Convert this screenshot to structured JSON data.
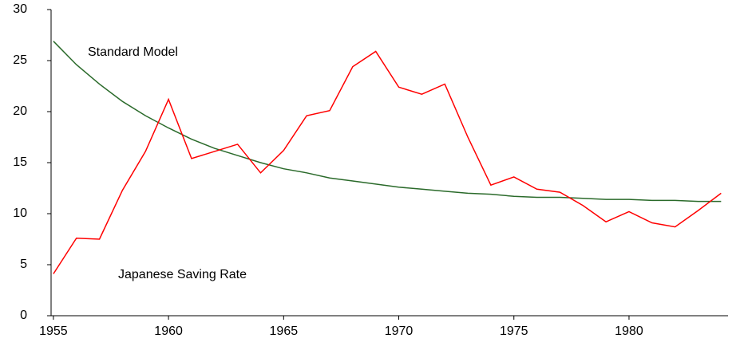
{
  "chart_data": {
    "type": "line",
    "x": [
      1955,
      1956,
      1957,
      1958,
      1959,
      1960,
      1961,
      1962,
      1963,
      1964,
      1965,
      1966,
      1967,
      1968,
      1969,
      1970,
      1971,
      1972,
      1973,
      1974,
      1975,
      1976,
      1977,
      1978,
      1979,
      1980,
      1981,
      1982,
      1983,
      1984
    ],
    "series": [
      {
        "name": "Standard Model",
        "color": "#2a6a2a",
        "values": [
          26.9,
          24.6,
          22.7,
          21.0,
          19.6,
          18.4,
          17.3,
          16.4,
          15.7,
          15.0,
          14.4,
          14.0,
          13.5,
          13.2,
          12.9,
          12.6,
          12.4,
          12.2,
          12.0,
          11.9,
          11.7,
          11.6,
          11.6,
          11.5,
          11.4,
          11.4,
          11.3,
          11.3,
          11.2,
          11.2
        ]
      },
      {
        "name": "Japanese Saving Rate",
        "color": "#ff0000",
        "values": [
          4.1,
          7.6,
          7.5,
          12.3,
          16.1,
          21.2,
          15.4,
          16.1,
          16.8,
          14.0,
          16.2,
          19.6,
          20.1,
          24.4,
          25.9,
          22.4,
          21.7,
          22.7,
          17.5,
          12.8,
          13.6,
          12.4,
          12.1,
          10.8,
          9.2,
          10.2,
          9.1,
          8.7,
          10.3,
          12.0
        ]
      }
    ],
    "xlim": [
      1954.9,
      1984.3
    ],
    "xticks": [
      1955,
      1960,
      1965,
      1970,
      1975,
      1980
    ],
    "ylim": [
      0,
      30
    ],
    "yticks": [
      0,
      5,
      10,
      15,
      20,
      25,
      30
    ]
  }
}
